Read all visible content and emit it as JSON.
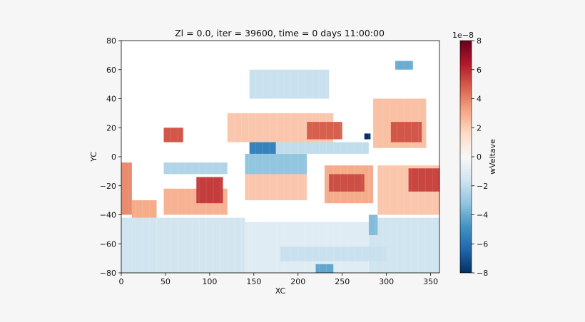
{
  "chart_data": {
    "type": "heatmap",
    "title": "Zl = 0.0, iter = 39600, time = 0 days 11:00:00",
    "xlabel": "XC",
    "ylabel": "YC",
    "xlim": [
      0,
      360
    ],
    "ylim": [
      -80,
      80
    ],
    "xticks": [
      "0",
      "50",
      "100",
      "150",
      "200",
      "250",
      "300",
      "350"
    ],
    "xtick_values": [
      0,
      50,
      100,
      150,
      200,
      250,
      300,
      350
    ],
    "yticks": [
      "80",
      "60",
      "40",
      "20",
      "0",
      "−20",
      "−40",
      "−60",
      "−80"
    ],
    "ytick_values": [
      80,
      60,
      40,
      20,
      0,
      -20,
      -40,
      -60,
      -80
    ],
    "grid_resolution_deg": 4,
    "colorbar": {
      "label": "wVeltave",
      "scale_text": "1e−8",
      "vmin": -8,
      "vmax": 8,
      "colormap": "RdBu_r",
      "ticks": [
        "8",
        "6",
        "4",
        "2",
        "0",
        "−2",
        "−4",
        "−6",
        "−8"
      ],
      "tick_values": [
        8,
        6,
        4,
        2,
        0,
        -2,
        -4,
        -6,
        -8
      ]
    },
    "land_color": "#ffffff",
    "regions": [
      {
        "lon": [
          0,
          40
        ],
        "lat": [
          -80,
          -42
        ],
        "value": -1.6
      },
      {
        "lon": [
          40,
          140
        ],
        "lat": [
          -80,
          -42
        ],
        "value": -1.5
      },
      {
        "lon": [
          140,
          280
        ],
        "lat": [
          -80,
          -45
        ],
        "value": -1.0
      },
      {
        "lon": [
          280,
          360
        ],
        "lat": [
          -80,
          -42
        ],
        "value": -1.6
      },
      {
        "lon": [
          0,
          12
        ],
        "lat": [
          -40,
          -4
        ],
        "value": 3.8
      },
      {
        "lon": [
          12,
          40
        ],
        "lat": [
          -42,
          -30
        ],
        "value": 3.0
      },
      {
        "lon": [
          48,
          120
        ],
        "lat": [
          -40,
          -22
        ],
        "value": 2.8
      },
      {
        "lon": [
          85,
          115
        ],
        "lat": [
          -32,
          -14
        ],
        "value": 5.6
      },
      {
        "lon": [
          48,
          120
        ],
        "lat": [
          -12,
          -4
        ],
        "value": -2.4
      },
      {
        "lon": [
          140,
          210
        ],
        "lat": [
          -30,
          -12
        ],
        "value": 2.2
      },
      {
        "lon": [
          140,
          210
        ],
        "lat": [
          -12,
          2
        ],
        "value": -3.2
      },
      {
        "lon": [
          145,
          175
        ],
        "lat": [
          2,
          14
        ],
        "value": -5.4
      },
      {
        "lon": [
          175,
          280
        ],
        "lat": [
          2,
          10
        ],
        "value": -2.0
      },
      {
        "lon": [
          120,
          240
        ],
        "lat": [
          10,
          30
        ],
        "value": 2.2
      },
      {
        "lon": [
          210,
          250
        ],
        "lat": [
          12,
          24
        ],
        "value": 4.8
      },
      {
        "lon": [
          230,
          285
        ],
        "lat": [
          -32,
          -6
        ],
        "value": 3.0
      },
      {
        "lon": [
          235,
          275
        ],
        "lat": [
          -24,
          -12
        ],
        "value": 5.2
      },
      {
        "lon": [
          145,
          235
        ],
        "lat": [
          40,
          60
        ],
        "value": -1.8
      },
      {
        "lon": [
          285,
          345
        ],
        "lat": [
          6,
          40
        ],
        "value": 2.4
      },
      {
        "lon": [
          305,
          340
        ],
        "lat": [
          10,
          24
        ],
        "value": 5.0
      },
      {
        "lon": [
          290,
          360
        ],
        "lat": [
          -40,
          -6
        ],
        "value": 2.2
      },
      {
        "lon": [
          325,
          360
        ],
        "lat": [
          -24,
          -8
        ],
        "value": 5.4
      },
      {
        "lon": [
          48,
          70
        ],
        "lat": [
          10,
          20
        ],
        "value": 5.0
      },
      {
        "lon": [
          275,
          282
        ],
        "lat": [
          12,
          16
        ],
        "value": -8.0
      },
      {
        "lon": [
          280,
          290
        ],
        "lat": [
          -54,
          -40
        ],
        "value": -3.5
      },
      {
        "lon": [
          310,
          330
        ],
        "lat": [
          60,
          66
        ],
        "value": -4.0
      },
      {
        "lon": [
          180,
          300
        ],
        "lat": [
          -72,
          -62
        ],
        "value": -1.8
      },
      {
        "lon": [
          220,
          240
        ],
        "lat": [
          -80,
          -74
        ],
        "value": -4.2
      }
    ]
  }
}
